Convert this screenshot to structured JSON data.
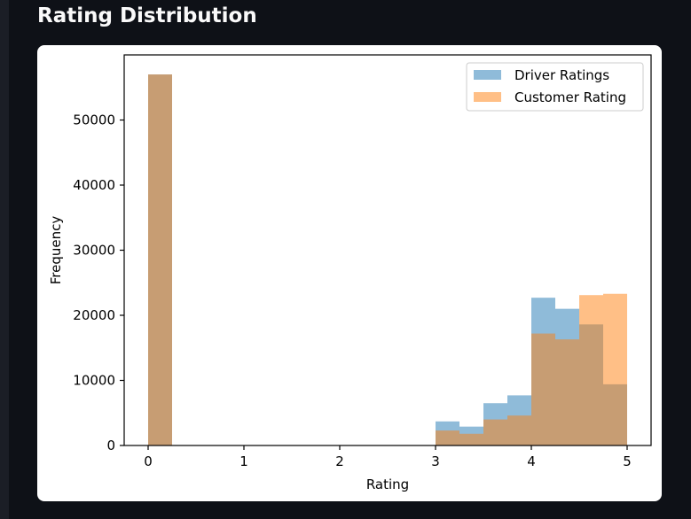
{
  "section_title": "Rating Distribution",
  "chart_data": {
    "type": "histogram",
    "title": "",
    "xlabel": "Rating",
    "ylabel": "Frequency",
    "xlim": [
      -0.25,
      5.25
    ],
    "ylim": [
      0,
      60000
    ],
    "xticks": [
      0,
      1,
      2,
      3,
      4,
      5
    ],
    "yticks": [
      0,
      10000,
      20000,
      30000,
      40000,
      50000
    ],
    "bin_width": 0.25,
    "bin_edges": [
      0,
      0.25,
      0.5,
      0.75,
      1,
      1.25,
      1.5,
      1.75,
      2,
      2.25,
      2.5,
      2.75,
      3,
      3.25,
      3.5,
      3.75,
      4,
      4.25,
      4.5,
      4.75,
      5
    ],
    "legend_position": "top-right",
    "series": [
      {
        "name": "Driver Ratings",
        "color": "#1f77b4",
        "alpha": 0.5,
        "counts": [
          57000,
          0,
          0,
          0,
          0,
          0,
          0,
          0,
          0,
          0,
          0,
          0,
          3700,
          2900,
          6500,
          7700,
          22700,
          21000,
          18600,
          9400
        ]
      },
      {
        "name": "Customer Rating",
        "color": "#ff7f0e",
        "alpha": 0.5,
        "counts": [
          57000,
          0,
          0,
          0,
          0,
          0,
          0,
          0,
          0,
          0,
          0,
          0,
          2300,
          1800,
          4000,
          4600,
          17200,
          16300,
          23100,
          23300
        ]
      }
    ]
  }
}
